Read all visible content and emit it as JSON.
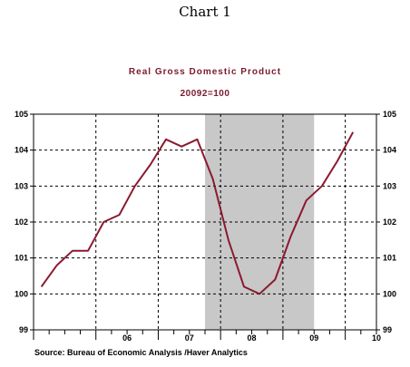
{
  "page": {
    "header": "Chart 1"
  },
  "chart_data": {
    "type": "line",
    "title": "Real Gross Domestic Product",
    "subtitle": "20092=100",
    "source": "Source:  Bureau of Economic Analysis /Haver Analytics",
    "x_labels": [
      "06",
      "07",
      "08",
      "09",
      "10"
    ],
    "ylim": [
      99,
      105
    ],
    "y_ticks": [
      99,
      100,
      101,
      102,
      103,
      104,
      105
    ],
    "grid": true,
    "recession_shading": {
      "start_quarter": "2007Q4",
      "end_quarter": "2009Q2",
      "color": "#c8c8c8"
    },
    "series": [
      {
        "color": "#8b1a30",
        "points": [
          {
            "q": "2005Q1",
            "y": 100.2
          },
          {
            "q": "2005Q2",
            "y": 100.8
          },
          {
            "q": "2005Q3",
            "y": 101.2
          },
          {
            "q": "2005Q4",
            "y": 101.2
          },
          {
            "q": "2006Q1",
            "y": 102.0
          },
          {
            "q": "2006Q2",
            "y": 102.2
          },
          {
            "q": "2006Q3",
            "y": 103.0
          },
          {
            "q": "2006Q4",
            "y": 103.6
          },
          {
            "q": "2007Q1",
            "y": 104.3
          },
          {
            "q": "2007Q2",
            "y": 104.1
          },
          {
            "q": "2007Q3",
            "y": 104.3
          },
          {
            "q": "2007Q4",
            "y": 103.2
          },
          {
            "q": "2008Q1",
            "y": 101.5
          },
          {
            "q": "2008Q2",
            "y": 100.2
          },
          {
            "q": "2008Q3",
            "y": 100.0
          },
          {
            "q": "2008Q4",
            "y": 100.4
          },
          {
            "q": "2009Q1",
            "y": 101.6
          },
          {
            "q": "2009Q2",
            "y": 102.6
          },
          {
            "q": "2009Q3",
            "y": 103.0
          },
          {
            "q": "2009Q4",
            "y": 103.7
          },
          {
            "q": "2010Q1",
            "y": 104.5
          }
        ]
      }
    ]
  }
}
